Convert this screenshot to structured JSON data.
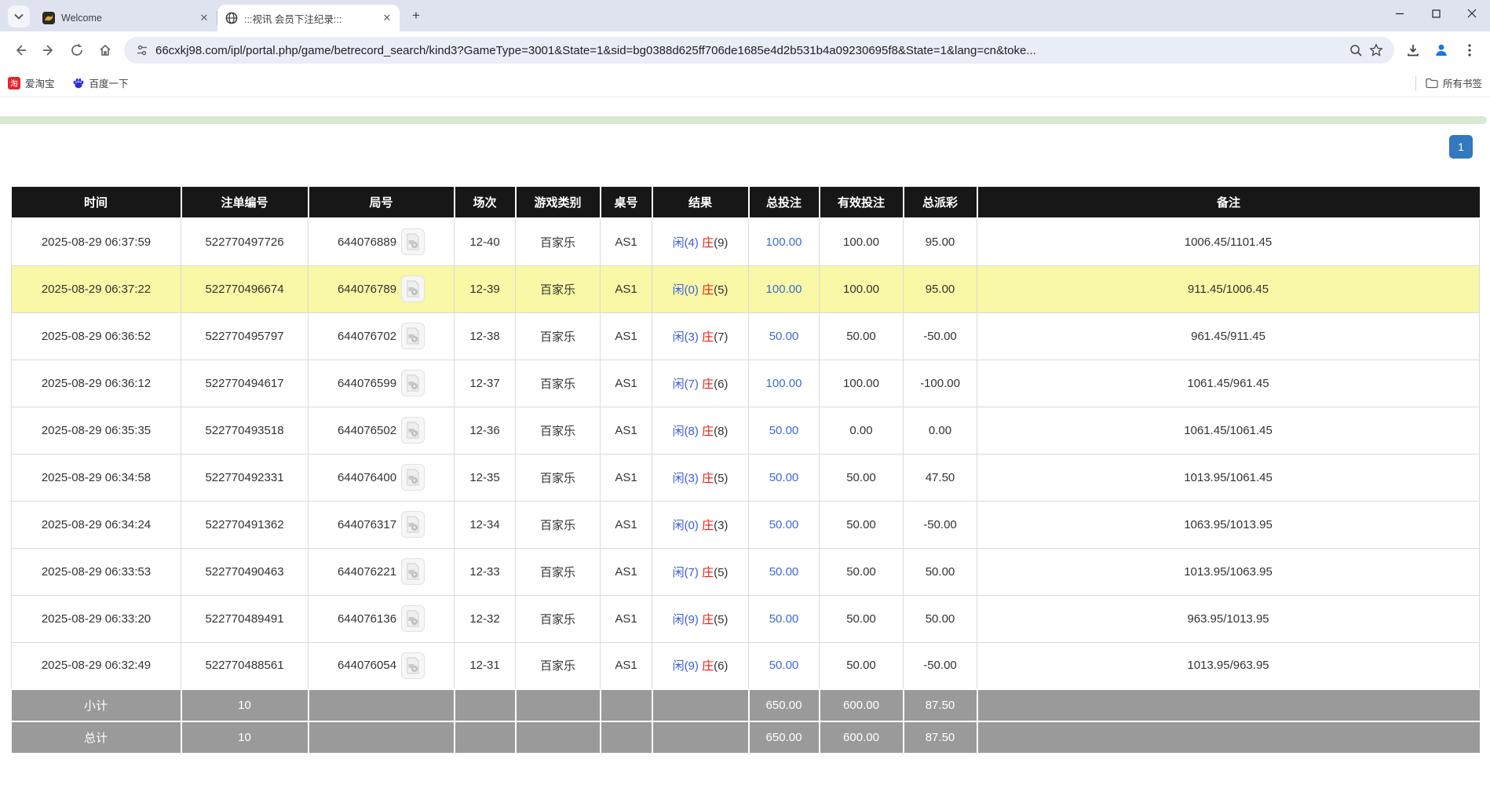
{
  "chrome": {
    "tabs": [
      {
        "title": "Welcome"
      },
      {
        "title": ":::视讯 会员下注纪录:::"
      }
    ],
    "new_tab_label": "+",
    "url": "66cxkj98.com/ipl/portal.php/game/betrecord_search/kind3?GameType=3001&State=1&sid=bg0388d625ff706de1685e4d2b531b4a09230695f8&State=1&lang=cn&toke...",
    "bookmarks": [
      {
        "label": "爱淘宝"
      },
      {
        "label": "百度一下"
      }
    ],
    "all_bookmarks_label": "所有书签"
  },
  "page": {
    "pager_top_label": "1",
    "table": {
      "headers": [
        "时间",
        "注单编号",
        "局号",
        "场次",
        "游戏类别",
        "桌号",
        "结果",
        "总投注",
        "有效投注",
        "总派彩",
        "备注"
      ],
      "rows": [
        {
          "time": "2025-08-29 06:37:59",
          "bet_no": "522770497726",
          "round_no": "644076889",
          "session": "12-40",
          "game": "百家乐",
          "table_no": "AS1",
          "xian": "闲(4)",
          "zhuang": "庄(9)",
          "total_bet": "100.00",
          "valid_bet": "100.00",
          "payout": "95.00",
          "remark": "1006.45/1101.45",
          "highlight": false
        },
        {
          "time": "2025-08-29 06:37:22",
          "bet_no": "522770496674",
          "round_no": "644076789",
          "session": "12-39",
          "game": "百家乐",
          "table_no": "AS1",
          "xian": "闲(0)",
          "zhuang": "庄(5)",
          "total_bet": "100.00",
          "valid_bet": "100.00",
          "payout": "95.00",
          "remark": "911.45/1006.45",
          "highlight": true
        },
        {
          "time": "2025-08-29 06:36:52",
          "bet_no": "522770495797",
          "round_no": "644076702",
          "session": "12-38",
          "game": "百家乐",
          "table_no": "AS1",
          "xian": "闲(3)",
          "zhuang": "庄(7)",
          "total_bet": "50.00",
          "valid_bet": "50.00",
          "payout": "-50.00",
          "remark": "961.45/911.45",
          "highlight": false
        },
        {
          "time": "2025-08-29 06:36:12",
          "bet_no": "522770494617",
          "round_no": "644076599",
          "session": "12-37",
          "game": "百家乐",
          "table_no": "AS1",
          "xian": "闲(7)",
          "zhuang": "庄(6)",
          "total_bet": "100.00",
          "valid_bet": "100.00",
          "payout": "-100.00",
          "remark": "1061.45/961.45",
          "highlight": false
        },
        {
          "time": "2025-08-29 06:35:35",
          "bet_no": "522770493518",
          "round_no": "644076502",
          "session": "12-36",
          "game": "百家乐",
          "table_no": "AS1",
          "xian": "闲(8)",
          "zhuang": "庄(8)",
          "total_bet": "50.00",
          "valid_bet": "0.00",
          "payout": "0.00",
          "remark": "1061.45/1061.45",
          "highlight": false
        },
        {
          "time": "2025-08-29 06:34:58",
          "bet_no": "522770492331",
          "round_no": "644076400",
          "session": "12-35",
          "game": "百家乐",
          "table_no": "AS1",
          "xian": "闲(3)",
          "zhuang": "庄(5)",
          "total_bet": "50.00",
          "valid_bet": "50.00",
          "payout": "47.50",
          "remark": "1013.95/1061.45",
          "highlight": false
        },
        {
          "time": "2025-08-29 06:34:24",
          "bet_no": "522770491362",
          "round_no": "644076317",
          "session": "12-34",
          "game": "百家乐",
          "table_no": "AS1",
          "xian": "闲(0)",
          "zhuang": "庄(3)",
          "total_bet": "50.00",
          "valid_bet": "50.00",
          "payout": "-50.00",
          "remark": "1063.95/1013.95",
          "highlight": false
        },
        {
          "time": "2025-08-29 06:33:53",
          "bet_no": "522770490463",
          "round_no": "644076221",
          "session": "12-33",
          "game": "百家乐",
          "table_no": "AS1",
          "xian": "闲(7)",
          "zhuang": "庄(5)",
          "total_bet": "50.00",
          "valid_bet": "50.00",
          "payout": "50.00",
          "remark": "1013.95/1063.95",
          "highlight": false
        },
        {
          "time": "2025-08-29 06:33:20",
          "bet_no": "522770489491",
          "round_no": "644076136",
          "session": "12-32",
          "game": "百家乐",
          "table_no": "AS1",
          "xian": "闲(9)",
          "zhuang": "庄(5)",
          "total_bet": "50.00",
          "valid_bet": "50.00",
          "payout": "50.00",
          "remark": "963.95/1013.95",
          "highlight": false
        },
        {
          "time": "2025-08-29 06:32:49",
          "bet_no": "522770488561",
          "round_no": "644076054",
          "session": "12-31",
          "game": "百家乐",
          "table_no": "AS1",
          "xian": "闲(9)",
          "zhuang": "庄(6)",
          "total_bet": "50.00",
          "valid_bet": "50.00",
          "payout": "-50.00",
          "remark": "1013.95/963.95",
          "highlight": false
        }
      ],
      "subtotal": {
        "label": "小计",
        "count": "10",
        "total_bet": "650.00",
        "valid_bet": "600.00",
        "payout": "87.50"
      },
      "grand_total": {
        "label": "总计",
        "count": "10",
        "total_bet": "650.00",
        "valid_bet": "600.00",
        "payout": "87.50"
      }
    }
  },
  "colors": {
    "accent_blue": "#3478bd",
    "link_blue": "#3a6bd8",
    "xian_blue": "#3b5edb",
    "zhuang_red": "#e8160c",
    "negative_red": "#ff0000",
    "highlight_yellow": "#f8f8a6",
    "header_black": "#171717",
    "summary_gray": "#9a9a9a",
    "strip_green": "#d9e9d2"
  }
}
